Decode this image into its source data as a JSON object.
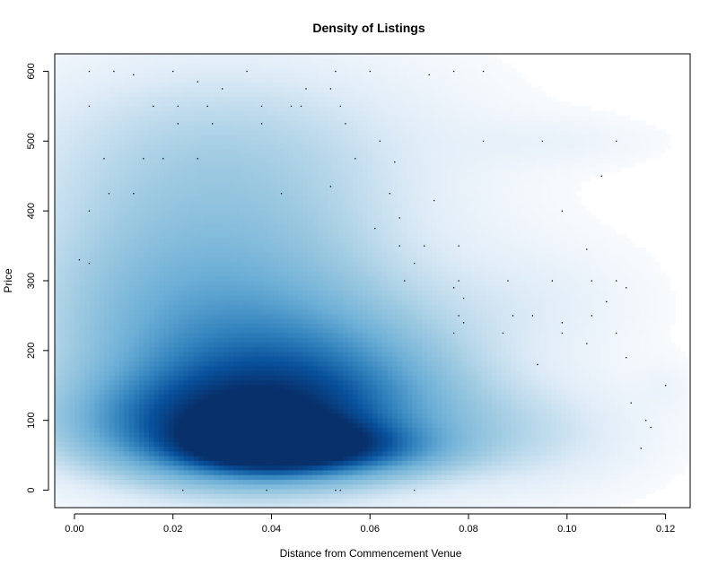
{
  "chart_data": {
    "type": "heatmap",
    "title": "Density of Listings",
    "xlabel": "Distance from Commencement Venue",
    "ylabel": "Price",
    "xlim": [
      -0.004,
      0.125
    ],
    "ylim": [
      -25,
      625
    ],
    "x_ticks": [
      "0.00",
      "0.02",
      "0.04",
      "0.06",
      "0.08",
      "0.10",
      "0.12"
    ],
    "y_ticks": [
      "0",
      "100",
      "200",
      "300",
      "400",
      "500",
      "600"
    ],
    "grid": false,
    "legend": "none",
    "colors": {
      "low": "#ffffff",
      "mid": "#6baed6",
      "high": "#08306b",
      "point": "#000000"
    },
    "density_peak": {
      "x": 0.04,
      "y": 70
    },
    "outlier_points": [
      [
        0.003,
        600
      ],
      [
        0.008,
        600
      ],
      [
        0.012,
        595
      ],
      [
        0.02,
        600
      ],
      [
        0.025,
        585
      ],
      [
        0.03,
        575
      ],
      [
        0.035,
        600
      ],
      [
        0.047,
        575
      ],
      [
        0.052,
        575
      ],
      [
        0.053,
        600
      ],
      [
        0.06,
        600
      ],
      [
        0.072,
        595
      ],
      [
        0.077,
        600
      ],
      [
        0.083,
        600
      ],
      [
        0.003,
        550
      ],
      [
        0.016,
        550
      ],
      [
        0.021,
        550
      ],
      [
        0.027,
        550
      ],
      [
        0.038,
        550
      ],
      [
        0.044,
        550
      ],
      [
        0.046,
        550
      ],
      [
        0.054,
        550
      ],
      [
        0.021,
        525
      ],
      [
        0.028,
        525
      ],
      [
        0.038,
        525
      ],
      [
        0.055,
        525
      ],
      [
        0.062,
        500
      ],
      [
        0.083,
        500
      ],
      [
        0.095,
        500
      ],
      [
        0.11,
        500
      ],
      [
        0.006,
        475
      ],
      [
        0.014,
        475
      ],
      [
        0.018,
        475
      ],
      [
        0.025,
        475
      ],
      [
        0.057,
        475
      ],
      [
        0.065,
        470
      ],
      [
        0.107,
        450
      ],
      [
        0.007,
        425
      ],
      [
        0.012,
        425
      ],
      [
        0.042,
        425
      ],
      [
        0.052,
        435
      ],
      [
        0.064,
        425
      ],
      [
        0.073,
        415
      ],
      [
        0.003,
        400
      ],
      [
        0.066,
        390
      ],
      [
        0.099,
        400
      ],
      [
        0.061,
        375
      ],
      [
        0.066,
        350
      ],
      [
        0.071,
        350
      ],
      [
        0.078,
        350
      ],
      [
        0.104,
        345
      ],
      [
        0.001,
        330
      ],
      [
        0.003,
        325
      ],
      [
        0.069,
        325
      ],
      [
        0.067,
        300
      ],
      [
        0.078,
        300
      ],
      [
        0.097,
        300
      ],
      [
        0.105,
        300
      ],
      [
        0.11,
        300
      ],
      [
        0.088,
        300
      ],
      [
        0.077,
        290
      ],
      [
        0.079,
        275
      ],
      [
        0.112,
        290
      ],
      [
        0.078,
        250
      ],
      [
        0.089,
        250
      ],
      [
        0.093,
        250
      ],
      [
        0.079,
        240
      ],
      [
        0.099,
        240
      ],
      [
        0.105,
        250
      ],
      [
        0.108,
        270
      ],
      [
        0.077,
        225
      ],
      [
        0.087,
        225
      ],
      [
        0.099,
        225
      ],
      [
        0.11,
        225
      ],
      [
        0.104,
        210
      ],
      [
        0.112,
        190
      ],
      [
        0.094,
        180
      ],
      [
        0.12,
        150
      ],
      [
        0.113,
        125
      ],
      [
        0.116,
        100
      ],
      [
        0.117,
        90
      ],
      [
        0.115,
        60
      ],
      [
        0.022,
        0
      ],
      [
        0.039,
        0
      ],
      [
        0.053,
        0
      ],
      [
        0.054,
        0
      ],
      [
        0.069,
        0
      ]
    ]
  }
}
